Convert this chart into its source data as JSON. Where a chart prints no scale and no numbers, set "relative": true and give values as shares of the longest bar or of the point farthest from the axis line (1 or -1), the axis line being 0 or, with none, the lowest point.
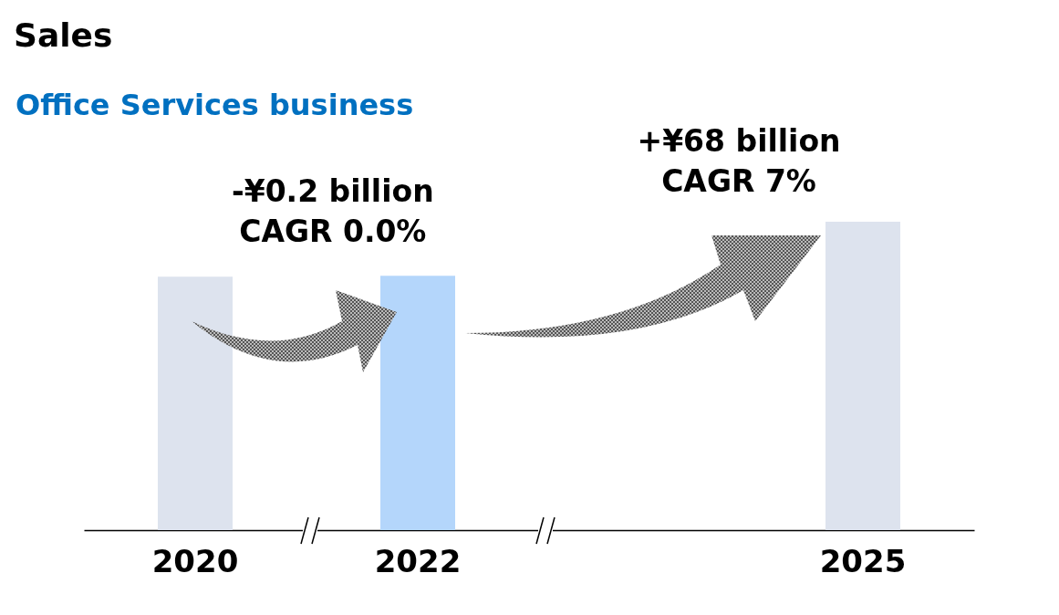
{
  "chart_data": {
    "type": "bar",
    "title": "Sales",
    "subtitle": "Office Services business",
    "categories": [
      "2020",
      "2022",
      null,
      "2025"
    ],
    "values": [
      0.822,
      0.825,
      null,
      1
    ],
    "colors": [
      "#dde3ee",
      "#b4d6fb",
      "#dde3ee",
      "#dde3ee"
    ],
    "relative": true,
    "annotations": [
      "-¥0.2 billion\nCAGR 0.0%",
      "+¥68 billion\nCAGR 7%"
    ]
  }
}
